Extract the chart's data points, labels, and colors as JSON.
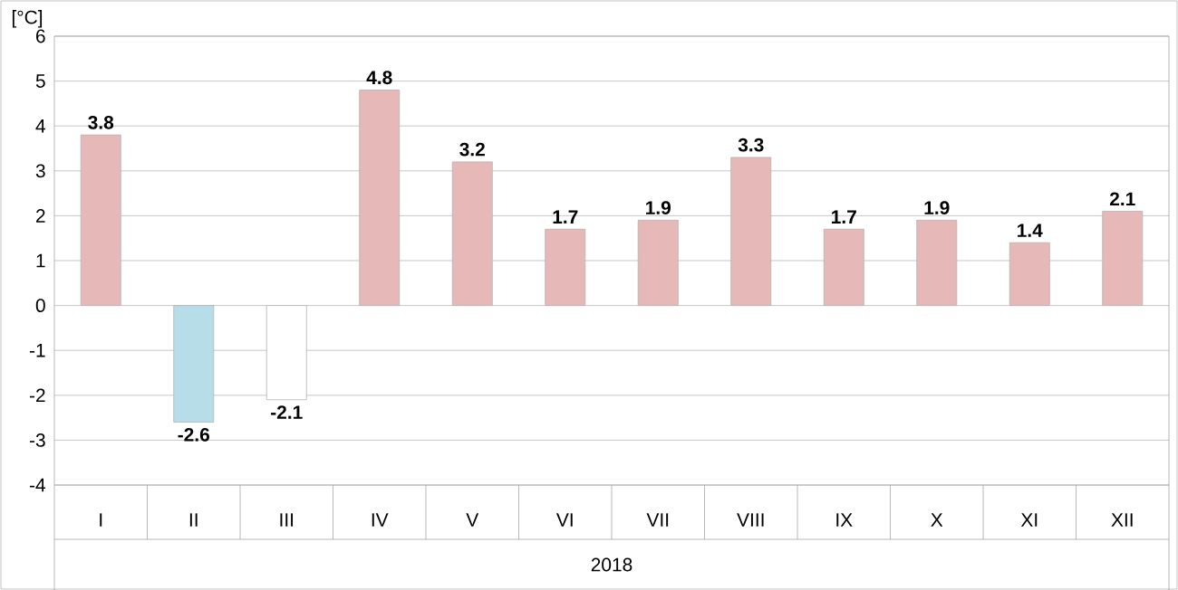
{
  "chart_data": {
    "type": "bar",
    "ylabel": "[°C]",
    "xlabel": "2018",
    "categories": [
      "I",
      "II",
      "III",
      "IV",
      "V",
      "VI",
      "VII",
      "VIII",
      "IX",
      "X",
      "XI",
      "XII"
    ],
    "values": [
      3.8,
      -2.6,
      -2.1,
      4.8,
      3.2,
      1.7,
      1.9,
      3.3,
      1.7,
      1.9,
      1.4,
      2.1
    ],
    "colors": [
      "#e6b9b8",
      "#b7dee8",
      "#ffffff",
      "#e6b9b8",
      "#e6b9b8",
      "#e6b9b8",
      "#e6b9b8",
      "#e6b9b8",
      "#e6b9b8",
      "#e6b9b8",
      "#e6b9b8",
      "#e6b9b8"
    ],
    "ylim": [
      -4,
      6
    ],
    "yticks": [
      -4,
      -3,
      -2,
      -1,
      0,
      1,
      2,
      3,
      4,
      5,
      6
    ],
    "grid": "y",
    "data_labels": true
  }
}
